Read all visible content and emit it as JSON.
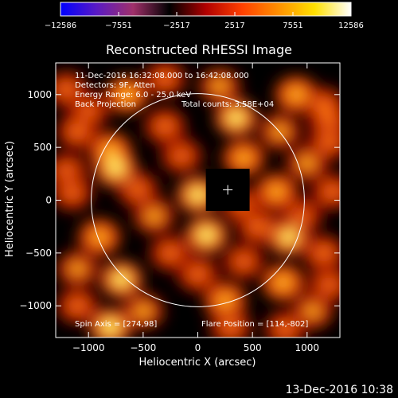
{
  "chart_data": {
    "type": "heatmap",
    "title": "Reconstructed RHESSI Image",
    "xlabel": "Heliocentric X (arcsec)",
    "ylabel": "Heliocentric Y (arcsec)",
    "xlim": [
      -1300,
      1300
    ],
    "ylim": [
      -1300,
      1300
    ],
    "xticks": [
      -1000,
      -500,
      0,
      500,
      1000
    ],
    "xtick_labels": [
      "−1000",
      "−500",
      "0",
      "500",
      "1000"
    ],
    "yticks": [
      -1000,
      -500,
      0,
      500,
      1000
    ],
    "ytick_labels": [
      "−1000",
      "−500",
      "0",
      "500",
      "1000"
    ],
    "colorbar": {
      "min": -12586,
      "max": 12586,
      "tick_values": [
        -12586,
        -7551,
        -2517,
        2517,
        7551,
        12586
      ],
      "tick_labels": [
        "−12586",
        "−7551",
        "−2517",
        "2517",
        "7551",
        "12586"
      ],
      "colormap": [
        "#0000ff",
        "#5a1ac4",
        "#a0306a",
        "#000000",
        "#b00000",
        "#ff4000",
        "#ff9000",
        "#ffe000",
        "#ffffff"
      ]
    },
    "annotations": [
      "11-Dec-2016 16:32:08.000 to 16:42:08.000",
      "Detectors: 9F, Atten",
      "Energy Range: 6.0 - 25.0 keV",
      "Back Projection",
      "Total counts: 3.58E+04"
    ],
    "spin_axis": "Spin Axis = [274,98]",
    "flare_position": "Flare Position = [114,-802]",
    "footer_time": "13-Dec-2016 10:38",
    "solar_disk": {
      "center": [
        0,
        0
      ],
      "radius": 975
    },
    "marker": {
      "x": 274,
      "y": 98,
      "box_halfwidth": 200
    },
    "sources": [
      {
        "x": -1200,
        "y": 1050,
        "v": 0.55
      },
      {
        "x": -650,
        "y": 1000,
        "v": 0.85
      },
      {
        "x": 200,
        "y": 1080,
        "v": 0.7
      },
      {
        "x": 900,
        "y": 1000,
        "v": 0.8
      },
      {
        "x": 1150,
        "y": 900,
        "v": 0.6
      },
      {
        "x": -1100,
        "y": 650,
        "v": 0.6
      },
      {
        "x": -300,
        "y": 700,
        "v": 0.6
      },
      {
        "x": 350,
        "y": 780,
        "v": 0.95
      },
      {
        "x": 750,
        "y": 650,
        "v": 0.7
      },
      {
        "x": 1200,
        "y": 550,
        "v": 0.55
      },
      {
        "x": -800,
        "y": 470,
        "v": 0.8
      },
      {
        "x": -150,
        "y": 420,
        "v": 0.5
      },
      {
        "x": 420,
        "y": 400,
        "v": 0.75
      },
      {
        "x": 1000,
        "y": 350,
        "v": 0.7
      },
      {
        "x": -1200,
        "y": 280,
        "v": 0.45
      },
      {
        "x": -750,
        "y": 300,
        "v": 0.95
      },
      {
        "x": 0,
        "y": 50,
        "v": 0.95
      },
      {
        "x": 720,
        "y": 80,
        "v": 0.75
      },
      {
        "x": 1230,
        "y": 80,
        "v": 0.55
      },
      {
        "x": -1150,
        "y": 70,
        "v": 0.5
      },
      {
        "x": -400,
        "y": -150,
        "v": 0.7
      },
      {
        "x": 550,
        "y": -250,
        "v": 0.6
      },
      {
        "x": 80,
        "y": -330,
        "v": 1.0
      },
      {
        "x": 830,
        "y": -350,
        "v": 0.9
      },
      {
        "x": -900,
        "y": -350,
        "v": 0.75
      },
      {
        "x": -250,
        "y": -500,
        "v": 0.55
      },
      {
        "x": 420,
        "y": -580,
        "v": 0.5
      },
      {
        "x": 1150,
        "y": -500,
        "v": 0.6
      },
      {
        "x": -1100,
        "y": -650,
        "v": 0.65
      },
      {
        "x": -700,
        "y": -750,
        "v": 0.95
      },
      {
        "x": 0,
        "y": -700,
        "v": 0.55
      },
      {
        "x": 780,
        "y": -780,
        "v": 0.85
      },
      {
        "x": 1200,
        "y": -800,
        "v": 0.5
      },
      {
        "x": -1100,
        "y": -1000,
        "v": 0.55
      },
      {
        "x": -500,
        "y": -1050,
        "v": 0.7
      },
      {
        "x": 250,
        "y": -950,
        "v": 0.75
      },
      {
        "x": 1050,
        "y": -1050,
        "v": 0.65
      },
      {
        "x": -800,
        "y": -1200,
        "v": 1.0
      },
      {
        "x": 300,
        "y": -1200,
        "v": 0.6
      },
      {
        "x": 800,
        "y": -1220,
        "v": 0.55
      },
      {
        "x": 1200,
        "y": 750,
        "v": 0.45
      },
      {
        "x": -300,
        "y": 1150,
        "v": 0.55
      },
      {
        "x": -550,
        "y": 100,
        "v": 0.55
      },
      {
        "x": 400,
        "y": -50,
        "v": 0.45
      },
      {
        "x": 950,
        "y": -150,
        "v": 0.45
      },
      {
        "x": -1000,
        "y": 850,
        "v": 0.45
      }
    ]
  }
}
